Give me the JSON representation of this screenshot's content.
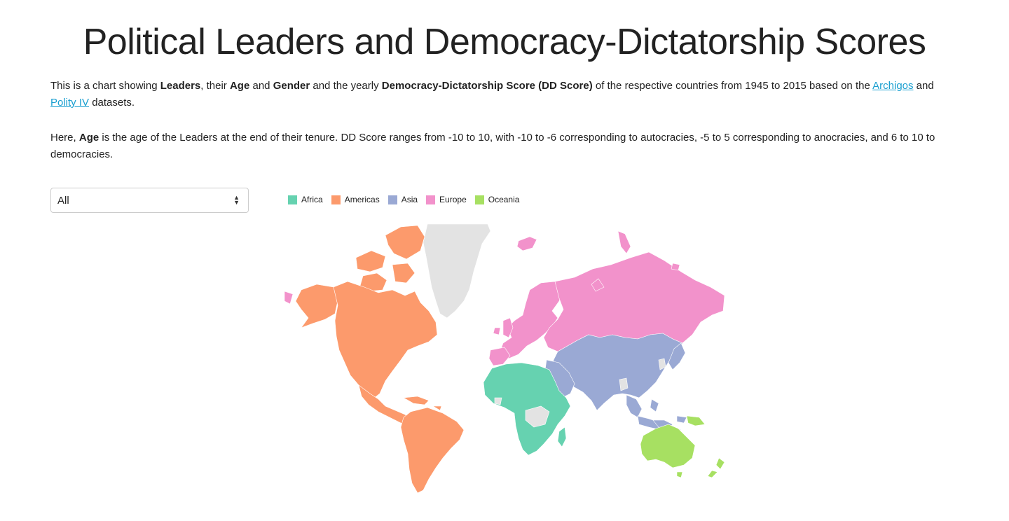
{
  "title": "Political Leaders and Democracy-Dictatorship Scores",
  "intro": {
    "p1_a": "This is a chart showing ",
    "p1_leaders": "Leaders",
    "p1_b": ", their ",
    "p1_age": "Age",
    "p1_c": " and ",
    "p1_gender": "Gender",
    "p1_d": " and the yearly ",
    "p1_dd": "Democracy-Dictatorship Score (DD Score)",
    "p1_e": " of the respective countries from 1945 to 2015 based on the ",
    "link_archigos": "Archigos",
    "p1_f": " and ",
    "link_polity": "Polity IV",
    "p1_g": " datasets.",
    "p2_a": "Here, ",
    "p2_age": "Age",
    "p2_b": " is the age of the Leaders at the end of their tenure. DD Score ranges from -10 to 10, with -10 to -6 corresponding to autocracies, -5 to 5 corresponding to anocracies, and 6 to 10 to democracies."
  },
  "filter": {
    "selected": "All"
  },
  "legend": [
    {
      "label": "Africa",
      "color": "#66d2b0"
    },
    {
      "label": "Americas",
      "color": "#fc9a6c"
    },
    {
      "label": "Asia",
      "color": "#9aa9d4"
    },
    {
      "label": "Europe",
      "color": "#f292cb"
    },
    {
      "label": "Oceania",
      "color": "#a7e062"
    }
  ],
  "map": {
    "no_data_color": "#e3e3e3",
    "regions": [
      "Africa",
      "Americas",
      "Asia",
      "Europe",
      "Oceania"
    ]
  }
}
